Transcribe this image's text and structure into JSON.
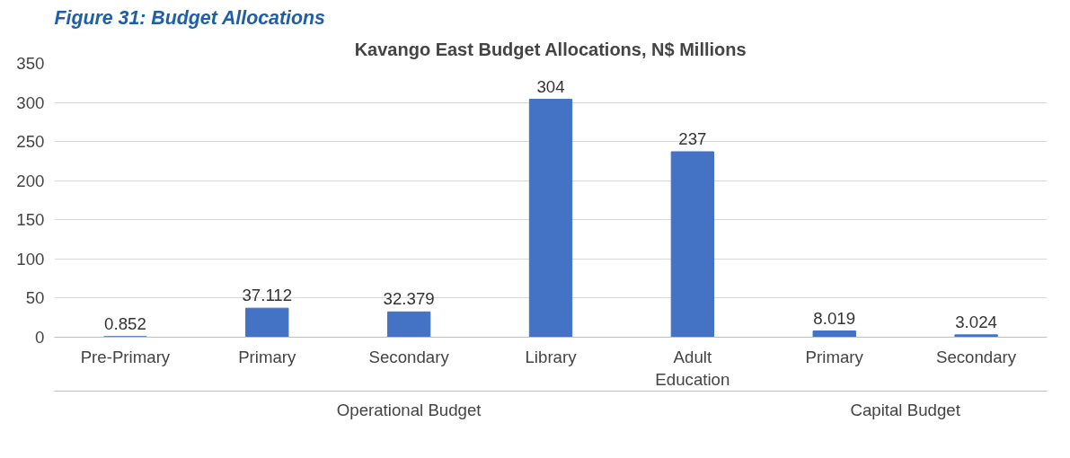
{
  "chart_data": {
    "type": "bar",
    "title": "Kavango East Budget Allocations, N$ Millions",
    "categories": [
      "Pre-Primary",
      "Primary",
      "Secondary",
      "Library",
      "Adult Education",
      "Primary",
      "Secondary"
    ],
    "values": [
      0.852,
      37.112,
      32.379,
      304,
      237,
      8.019,
      3.024
    ],
    "color": "#4472c4",
    "ylim": [
      0,
      350
    ],
    "yticks": [
      0,
      50,
      100,
      150,
      200,
      250,
      300,
      350
    ],
    "grid": "y",
    "data_labels": true,
    "annotations": [
      "Figure 31: Budget Allocations",
      "Operational Budget",
      "Capital Budget"
    ]
  }
}
